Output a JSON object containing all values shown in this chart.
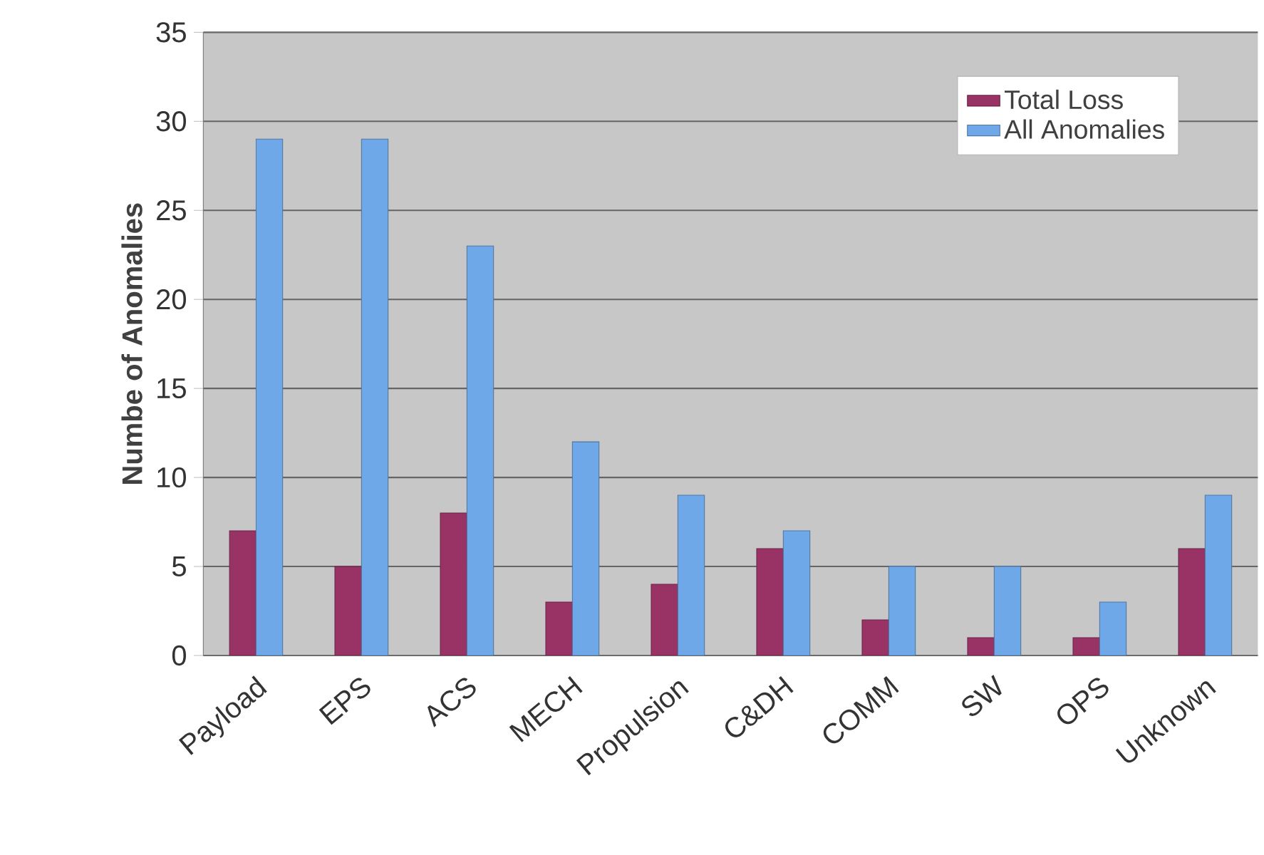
{
  "chart_data": {
    "type": "bar",
    "ylabel": "Numbe of Anomalies",
    "categories": [
      "Payload",
      "EPS",
      "ACS",
      "MECH",
      "Propulsion",
      "C&DH",
      "COMM",
      "SW",
      "OPS",
      "Unknown"
    ],
    "series": [
      {
        "name": "Total Loss",
        "color": "#993366",
        "values": [
          7,
          5,
          8,
          3,
          4,
          6,
          2,
          1,
          1,
          6
        ]
      },
      {
        "name": "All Anomalies",
        "color": "#6fa8e8",
        "values": [
          29,
          29,
          23,
          12,
          9,
          7,
          5,
          5,
          3,
          9
        ]
      }
    ],
    "ylim": [
      0,
      35
    ],
    "yticks": [
      0,
      5,
      10,
      15,
      20,
      25,
      30,
      35
    ],
    "grid": "y",
    "legend": "top right"
  }
}
